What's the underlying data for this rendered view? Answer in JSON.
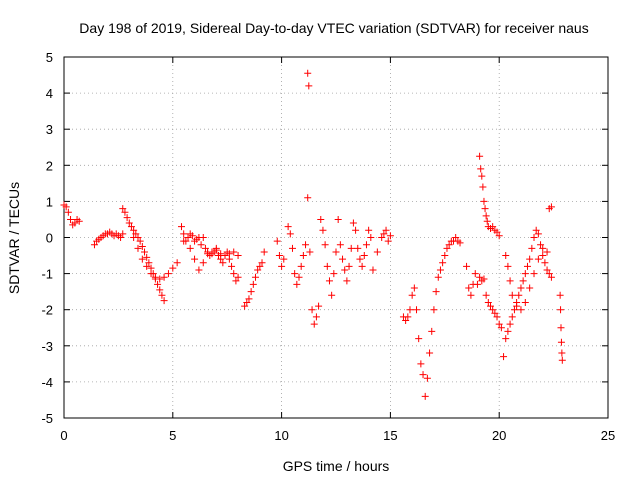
{
  "chart_data": {
    "type": "scatter",
    "title": "Day 198 of 2019, Sidereal Day-to-day VTEC variation (SDTVAR) for receiver naus",
    "xlabel": "GPS time / hours",
    "ylabel": "SDTVAR / TECUs",
    "xlim": [
      0,
      25
    ],
    "ylim": [
      -5,
      5
    ],
    "xticks": [
      "0",
      "5",
      "10",
      "15",
      "20",
      "25"
    ],
    "yticks": [
      "5",
      "4",
      "3",
      "2",
      "1",
      "0",
      "-1",
      "-2",
      "-3",
      "-4",
      "-5"
    ],
    "grid": true,
    "marker": "plus",
    "color": "#ff0000",
    "series": [
      {
        "name": "seg1",
        "x": [
          0.0,
          0.1,
          0.2,
          0.3,
          0.4,
          0.5,
          0.6,
          0.7
        ],
        "y": [
          0.9,
          0.85,
          0.7,
          0.5,
          0.35,
          0.4,
          0.5,
          0.45
        ]
      },
      {
        "name": "seg2",
        "x": [
          1.4,
          1.5,
          1.6,
          1.7,
          1.8,
          1.9,
          2.0,
          2.1,
          2.2,
          2.3,
          2.4,
          2.5,
          2.6,
          2.7
        ],
        "y": [
          -0.2,
          -0.1,
          -0.05,
          0.0,
          0.05,
          0.1,
          0.1,
          0.15,
          0.1,
          0.05,
          0.1,
          0.05,
          0.0,
          0.1
        ]
      },
      {
        "name": "seg3",
        "x": [
          2.7,
          2.8,
          2.9,
          3.0,
          3.1,
          3.2,
          3.3,
          3.4,
          3.5,
          3.6,
          3.7,
          3.8,
          3.9,
          4.0,
          4.1,
          4.2,
          4.3,
          4.4,
          4.5,
          4.6
        ],
        "y": [
          0.8,
          0.7,
          0.55,
          0.4,
          0.3,
          0.2,
          0.1,
          0.0,
          -0.1,
          -0.25,
          -0.4,
          -0.55,
          -0.7,
          -0.85,
          -1.0,
          -1.15,
          -1.3,
          -1.45,
          -1.6,
          -1.75
        ]
      },
      {
        "name": "seg4",
        "x": [
          3.2,
          3.4,
          3.6,
          3.8,
          4.0,
          4.2,
          4.4,
          4.6,
          4.8,
          5.0,
          5.2
        ],
        "y": [
          0.0,
          -0.3,
          -0.6,
          -0.8,
          -1.0,
          -1.1,
          -1.15,
          -1.1,
          -1.0,
          -0.85,
          -0.7
        ]
      },
      {
        "name": "seg5",
        "x": [
          5.4,
          5.5,
          5.6,
          5.7,
          5.8,
          5.9,
          6.0,
          6.1,
          6.2,
          6.3,
          6.4,
          6.5,
          6.6,
          6.7,
          6.8,
          6.9,
          7.0,
          7.1,
          7.2,
          7.3,
          7.4,
          7.5,
          7.6,
          7.7,
          7.8,
          7.9,
          8.0
        ],
        "y": [
          0.3,
          0.1,
          -0.1,
          0.0,
          0.1,
          0.05,
          -0.1,
          -0.05,
          0.0,
          -0.2,
          0.0,
          -0.3,
          -0.4,
          -0.5,
          -0.45,
          -0.4,
          -0.3,
          -0.5,
          -0.6,
          -0.7,
          -0.5,
          -0.4,
          -0.6,
          -0.8,
          -1.0,
          -1.2,
          -1.1
        ]
      },
      {
        "name": "seg6",
        "x": [
          5.5,
          5.8,
          6.0,
          6.2,
          6.4,
          6.6,
          6.8,
          7.0,
          7.2,
          7.4,
          7.6,
          7.8,
          8.0
        ],
        "y": [
          -0.1,
          -0.3,
          -0.6,
          -0.9,
          -0.7,
          -0.45,
          -0.4,
          -0.35,
          -0.45,
          -0.5,
          -0.45,
          -0.4,
          -0.5
        ]
      },
      {
        "name": "seg7",
        "x": [
          8.3,
          8.4,
          8.5,
          8.6,
          8.7,
          8.8,
          8.9,
          9.0,
          9.1,
          9.2
        ],
        "y": [
          -1.9,
          -1.8,
          -1.7,
          -1.5,
          -1.3,
          -1.1,
          -0.9,
          -0.8,
          -0.7,
          -0.4
        ]
      },
      {
        "name": "seg8",
        "x": [
          9.8,
          9.9,
          10.0,
          10.1,
          10.3,
          10.4,
          10.5,
          10.6,
          10.7,
          10.8,
          10.9,
          11.0,
          11.1,
          11.2,
          11.3,
          11.4,
          11.5,
          11.6,
          11.7
        ],
        "y": [
          -0.1,
          -0.5,
          -0.8,
          -0.6,
          0.3,
          0.1,
          -0.3,
          -1.0,
          -1.3,
          -1.1,
          -0.8,
          -0.5,
          -0.2,
          1.1,
          -0.4,
          -2.0,
          -2.4,
          -2.2,
          -1.9
        ]
      },
      {
        "name": "seg9",
        "x": [
          11.2,
          11.25
        ],
        "y": [
          4.55,
          4.2
        ]
      },
      {
        "name": "seg10",
        "x": [
          11.8,
          11.9,
          12.0,
          12.1,
          12.2,
          12.3,
          12.4,
          12.5,
          12.6,
          12.7,
          12.8,
          12.9,
          13.0,
          13.1,
          13.2,
          13.3,
          13.4,
          13.5,
          13.6,
          13.7,
          13.8,
          13.9,
          14.0,
          14.1,
          14.2
        ],
        "y": [
          0.5,
          0.2,
          -0.2,
          -0.8,
          -1.2,
          -1.6,
          -1.0,
          -0.4,
          0.5,
          -0.2,
          -0.6,
          -0.9,
          -1.2,
          -0.8,
          -0.3,
          0.4,
          0.2,
          -0.3,
          -0.6,
          -0.8,
          -0.5,
          -0.2,
          0.2,
          0.0,
          -0.9
        ]
      },
      {
        "name": "seg11",
        "x": [
          14.4,
          14.6,
          14.7,
          14.8,
          14.9,
          15.0
        ],
        "y": [
          -0.4,
          0.0,
          0.1,
          0.2,
          -0.1,
          0.05
        ]
      },
      {
        "name": "seg12",
        "x": [
          15.6,
          15.7,
          15.8,
          15.9,
          16.0,
          16.1,
          16.2,
          16.3,
          16.4,
          16.5,
          16.6,
          16.7,
          16.8,
          16.9,
          17.0,
          17.1,
          17.2,
          17.3,
          17.4,
          17.5,
          17.6,
          17.7,
          17.8,
          17.9,
          18.0,
          18.1,
          18.2
        ],
        "y": [
          -2.2,
          -2.3,
          -2.2,
          -2.0,
          -1.6,
          -1.4,
          -2.0,
          -2.8,
          -3.5,
          -3.8,
          -4.4,
          -3.9,
          -3.2,
          -2.6,
          -2.0,
          -1.5,
          -1.1,
          -0.9,
          -0.7,
          -0.5,
          -0.3,
          -0.2,
          -0.1,
          -0.1,
          0.0,
          -0.1,
          -0.15
        ]
      },
      {
        "name": "seg13",
        "x": [
          18.5,
          18.6,
          18.7,
          18.8,
          18.9,
          19.0,
          19.1,
          19.2,
          19.3,
          19.4,
          19.5,
          19.6,
          19.7,
          19.8,
          19.9,
          20.0,
          20.1
        ],
        "y": [
          -0.8,
          -1.4,
          -1.6,
          -1.3,
          -1.0,
          -1.3,
          -1.1,
          -1.2,
          -1.15,
          -1.6,
          -1.8,
          -1.9,
          -2.0,
          -2.1,
          -2.2,
          -2.4,
          -2.5
        ]
      },
      {
        "name": "seg14",
        "x": [
          19.1,
          19.15,
          19.2,
          19.25,
          19.3,
          19.35,
          19.4,
          19.45,
          19.5,
          19.6,
          19.7,
          19.8,
          19.9,
          20.0
        ],
        "y": [
          2.25,
          1.9,
          1.7,
          1.4,
          1.0,
          0.8,
          0.6,
          0.45,
          0.3,
          0.25,
          0.3,
          0.2,
          0.15,
          0.05
        ]
      },
      {
        "name": "seg15",
        "x": [
          20.2,
          20.3,
          20.4,
          20.5,
          20.6,
          20.7,
          20.8,
          20.9,
          21.0,
          21.1,
          21.2,
          21.3,
          21.4,
          21.5,
          21.6,
          21.7,
          21.8,
          21.9,
          22.0,
          22.1,
          22.2,
          22.3,
          22.4
        ],
        "y": [
          -3.3,
          -2.8,
          -2.6,
          -2.4,
          -2.2,
          -2.0,
          -1.8,
          -1.6,
          -1.4,
          -1.2,
          -1.0,
          -0.8,
          -0.6,
          -0.3,
          0.0,
          0.2,
          0.1,
          -0.2,
          -0.5,
          -0.7,
          -0.9,
          -1.0,
          -1.1
        ]
      },
      {
        "name": "seg16",
        "x": [
          20.3,
          20.4,
          20.5,
          20.6,
          20.8,
          21.0,
          21.2,
          21.4,
          21.6,
          21.8,
          22.0,
          22.2,
          22.3,
          22.4
        ],
        "y": [
          -0.5,
          -0.8,
          -1.2,
          -1.6,
          -1.9,
          -2.0,
          -1.8,
          -1.4,
          -1.0,
          -0.6,
          -0.3,
          -0.4,
          0.8,
          0.85
        ]
      },
      {
        "name": "seg17",
        "x": [
          22.8,
          22.82,
          22.84,
          22.86,
          22.88,
          22.9
        ],
        "y": [
          -1.6,
          -2.0,
          -2.5,
          -2.9,
          -3.2,
          -3.4
        ]
      }
    ]
  }
}
